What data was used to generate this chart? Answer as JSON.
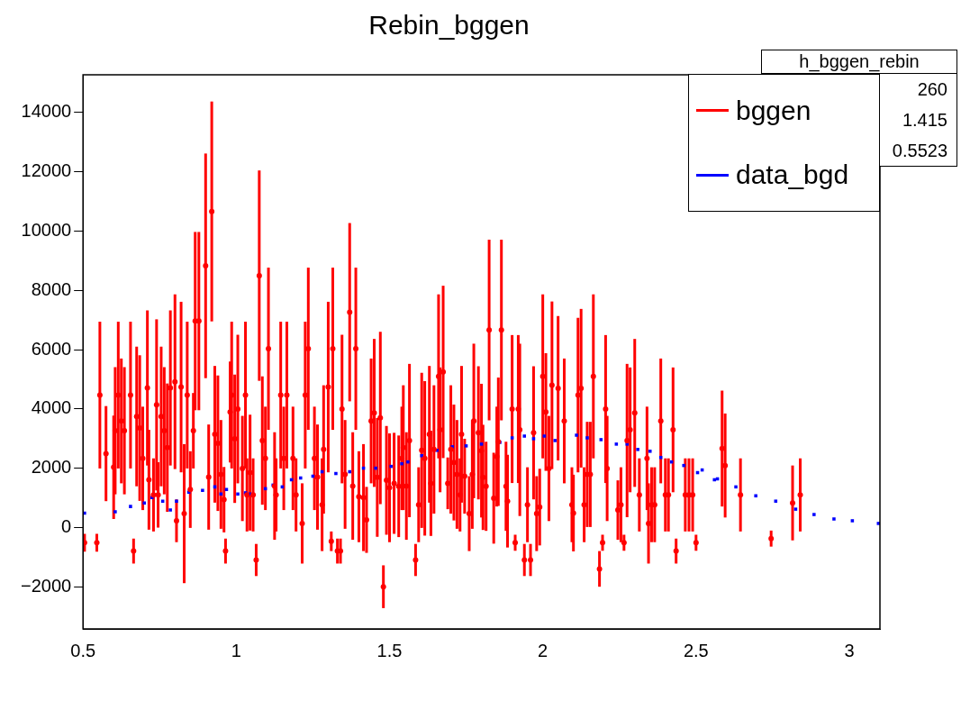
{
  "chart_data": {
    "type": "scatter",
    "title": "Rebin_bggen",
    "xlim": [
      0.5,
      3.1
    ],
    "xticks": [
      0.5,
      1,
      1.5,
      2,
      2.5,
      3
    ],
    "ylim": [
      -3400,
      15250
    ],
    "yticks": [
      {
        "value": -2000,
        "label": "−2000"
      },
      0,
      2000,
      4000,
      6000,
      8000,
      10000,
      12000,
      14000
    ],
    "legend": "top right",
    "grid": false,
    "annotations": [
      "h_bggen_rebin",
      "260",
      "1.415",
      "0.5523"
    ],
    "series": [
      {
        "name": "bggen",
        "color": "#ff0000",
        "marker": "circle",
        "x": [
          0.505,
          0.545,
          0.555,
          0.575,
          0.6,
          0.605,
          0.615,
          0.625,
          0.635,
          0.655,
          0.665,
          0.675,
          0.685,
          0.695,
          0.71,
          0.715,
          0.73,
          0.74,
          0.745,
          0.755,
          0.765,
          0.775,
          0.785,
          0.8,
          0.805,
          0.82,
          0.83,
          0.84,
          0.85,
          0.86,
          0.866,
          0.878,
          0.9,
          0.91,
          0.92,
          0.93,
          0.94,
          0.95,
          0.96,
          0.965,
          0.98,
          0.985,
          0.995,
          1.005,
          1.02,
          1.03,
          1.035,
          1.045,
          1.055,
          1.065,
          1.075,
          1.085,
          1.095,
          1.105,
          1.125,
          1.13,
          1.145,
          1.155,
          1.165,
          1.185,
          1.195,
          1.215,
          1.225,
          1.235,
          1.255,
          1.265,
          1.28,
          1.285,
          1.3,
          1.31,
          1.315,
          1.33,
          1.34,
          1.345,
          1.355,
          1.37,
          1.38,
          1.39,
          1.4,
          1.415,
          1.425,
          1.44,
          1.45,
          1.46,
          1.47,
          1.48,
          1.49,
          1.5,
          1.515,
          1.53,
          1.54,
          1.545,
          1.555,
          1.565,
          1.585,
          1.595,
          1.605,
          1.615,
          1.63,
          1.635,
          1.645,
          1.66,
          1.665,
          1.675,
          1.69,
          1.7,
          1.71,
          1.72,
          1.73,
          1.735,
          1.745,
          1.76,
          1.77,
          1.775,
          1.79,
          1.8,
          1.805,
          1.815,
          1.825,
          1.84,
          1.85,
          1.855,
          1.865,
          1.88,
          1.885,
          1.9,
          1.91,
          1.92,
          1.925,
          1.94,
          1.95,
          1.96,
          1.97,
          1.98,
          1.99,
          2.0,
          2.01,
          2.02,
          2.03,
          2.05,
          2.07,
          2.095,
          2.1,
          2.115,
          2.125,
          2.135,
          2.145,
          2.155,
          2.165,
          2.185,
          2.195,
          2.205,
          2.21,
          2.245,
          2.255,
          2.265,
          2.275,
          2.285,
          2.3,
          2.315,
          2.34,
          2.345,
          2.355,
          2.365,
          2.385,
          2.4,
          2.41,
          2.425,
          2.435,
          2.465,
          2.477,
          2.489,
          2.5,
          2.585,
          2.595,
          2.645,
          2.745,
          2.815,
          2.84
        ],
        "values": [
          -500,
          -500,
          4470,
          2500,
          2040,
          3270,
          4470,
          3600,
          3270,
          4470,
          -780,
          3750,
          3360,
          2340,
          4710,
          1620,
          1110,
          4140,
          1110,
          3750,
          3270,
          2700,
          4710,
          4920,
          240,
          4740,
          480,
          4470,
          1290,
          3270,
          6960,
          6960,
          8820,
          1710,
          10650,
          3150,
          2850,
          1800,
          950,
          -780,
          3900,
          4470,
          3000,
          4000,
          2000,
          4470,
          1110,
          1860,
          1110,
          -1080,
          8490,
          2940,
          2340,
          6030,
          1410,
          1110,
          4470,
          2340,
          4470,
          2340,
          1110,
          150,
          4470,
          6030,
          2340,
          1710,
          780,
          2640,
          4740,
          -450,
          6030,
          -780,
          -780,
          4000,
          1800,
          7260,
          1410,
          6030,
          1050,
          1020,
          270,
          3600,
          3870,
          1700,
          3700,
          -1980,
          1600,
          1350,
          1500,
          1400,
          2340,
          2700,
          1410,
          2940,
          -1080,
          780,
          2610,
          2340,
          3150,
          1500,
          2640,
          5100,
          3300,
          5250,
          1500,
          2640,
          2200,
          1800,
          1110,
          3150,
          1740,
          480,
          1800,
          3600,
          3200,
          2600,
          1700,
          1400,
          6660,
          1000,
          2400,
          2900,
          6660,
          1400,
          900,
          4000,
          -500,
          4000,
          3300,
          -1080,
          780,
          -1080,
          3200,
          480,
          700,
          5100,
          3900,
          2000,
          4800,
          4700,
          3600,
          780,
          500,
          4470,
          4700,
          780,
          1800,
          1800,
          5100,
          -1380,
          -500,
          4000,
          2000,
          600,
          780,
          -500,
          2940,
          3300,
          3870,
          1110,
          2340,
          150,
          780,
          780,
          3600,
          1110,
          1110,
          3300,
          -780,
          1110,
          1110,
          1110,
          -500,
          2670,
          2100,
          1110,
          -360,
          840,
          1110
        ],
        "errors": [
          300,
          300,
          2470,
          1600,
          1740,
          2140,
          2470,
          2100,
          2140,
          2470,
          420,
          2350,
          2450,
          1740,
          2610,
          1680,
          1230,
          2880,
          1100,
          2350,
          2140,
          2160,
          2610,
          2940,
          720,
          2870,
          2340,
          2470,
          1290,
          1270,
          3000,
          3000,
          3780,
          1770,
          3700,
          2300,
          2280,
          1830,
          1100,
          420,
          1700,
          2470,
          2160,
          2500,
          1770,
          2470,
          1230,
          1950,
          1230,
          540,
          3540,
          2160,
          1740,
          2730,
          1810,
          1230,
          2470,
          1740,
          2470,
          1740,
          1230,
          1350,
          2470,
          2730,
          1740,
          1770,
          1560,
          2160,
          2870,
          330,
          2730,
          420,
          420,
          2500,
          1830,
          3000,
          1810,
          2730,
          1530,
          1800,
          1110,
          2100,
          2490,
          2000,
          2900,
          720,
          1830,
          1830,
          1700,
          1710,
          1740,
          2100,
          1810,
          2580,
          540,
          1260,
          2610,
          2600,
          2300,
          1770,
          2160,
          2760,
          2100,
          2900,
          870,
          2160,
          1950,
          1830,
          1230,
          2300,
          1260,
          1260,
          1830,
          2600,
          2240,
          2250,
          1770,
          1500,
          3040,
          1530,
          1680,
          2160,
          3040,
          1500,
          1560,
          2490,
          270,
          2490,
          2900,
          540,
          1260,
          540,
          2240,
          1260,
          1290,
          2760,
          1980,
          1770,
          2820,
          2430,
          2100,
          1260,
          1290,
          2600,
          2670,
          1260,
          1770,
          1770,
          2760,
          600,
          270,
          2490,
          1770,
          1000,
          1260,
          270,
          2580,
          2100,
          2490,
          1230,
          1740,
          1350,
          1260,
          1260,
          2100,
          1230,
          1230,
          2100,
          420,
          1230,
          1230,
          1230,
          270,
          1950,
          1750,
          1230,
          270,
          1260,
          1230
        ]
      },
      {
        "name": "data_bgd",
        "color": "#0000ff",
        "marker": "square",
        "x": [
          0.505,
          0.605,
          0.655,
          0.7,
          0.725,
          0.76,
          0.785,
          0.805,
          0.845,
          0.89,
          0.93,
          0.95,
          0.968,
          1.005,
          1.03,
          1.045,
          1.095,
          1.12,
          1.15,
          1.18,
          1.21,
          1.25,
          1.28,
          1.325,
          1.37,
          1.415,
          1.455,
          1.505,
          1.54,
          1.56,
          1.605,
          1.655,
          1.705,
          1.75,
          1.8,
          1.86,
          1.9,
          1.94,
          1.97,
          2.005,
          2.04,
          2.11,
          2.145,
          2.19,
          2.24,
          2.275,
          2.31,
          2.35,
          2.385,
          2.42,
          2.46,
          2.505,
          2.52,
          2.56,
          2.57,
          2.63,
          2.695,
          2.76,
          2.825,
          2.885,
          2.95,
          3.01,
          3.095
        ],
        "values": [
          500,
          540,
          720,
          840,
          1020,
          900,
          600,
          900,
          1200,
          1260,
          1380,
          1140,
          1290,
          1140,
          1180,
          1140,
          1320,
          1440,
          1380,
          1620,
          1680,
          1740,
          1890,
          1830,
          1890,
          2010,
          2010,
          2070,
          2160,
          2220,
          2430,
          2610,
          2730,
          2760,
          2820,
          2880,
          3030,
          3090,
          3000,
          3090,
          2940,
          3120,
          3030,
          2970,
          2820,
          2820,
          2640,
          2580,
          2370,
          2220,
          2100,
          1860,
          1950,
          1620,
          1650,
          1380,
          1080,
          900,
          630,
          450,
          300,
          240,
          150
        ]
      }
    ]
  }
}
